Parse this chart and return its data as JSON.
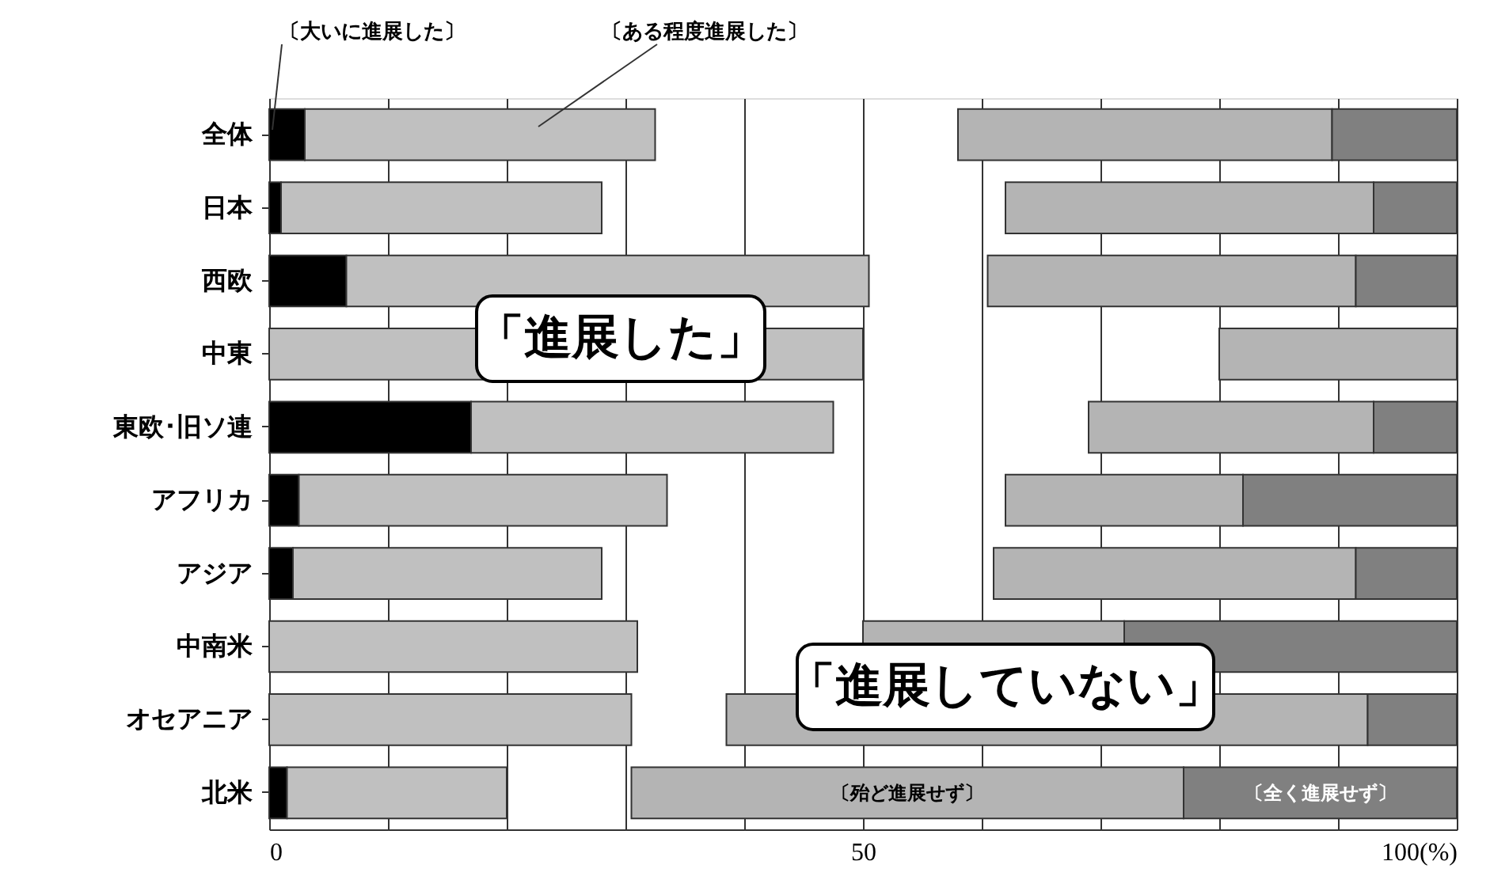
{
  "chart_data": {
    "type": "bar",
    "orientation": "horizontal",
    "categories": [
      "全体",
      "日本",
      "西欧",
      "中東",
      "東欧･旧ソ連",
      "アフリカ",
      "アジア",
      "中南米",
      "オセアニア",
      "北米"
    ],
    "series": [
      {
        "name": "〔大いに進展した〕",
        "color": "#000000",
        "base": [
          0,
          0,
          0,
          null,
          0,
          0,
          0,
          null,
          null,
          0
        ],
        "values": [
          3,
          1,
          6.5,
          null,
          17,
          2.5,
          2,
          null,
          null,
          1.5
        ]
      },
      {
        "name": "〔ある程度進展した〕",
        "color": "#c0c0c0",
        "base": [
          3,
          1,
          6.5,
          0,
          17,
          2.5,
          2,
          0,
          0,
          1.5
        ],
        "values": [
          29.5,
          27,
          44,
          50,
          30.5,
          31,
          26,
          31,
          30.5,
          18.5
        ]
      },
      {
        "name": "〔殆ど進展せず〕",
        "color": "#b4b4b4",
        "base": [
          58,
          62,
          60.5,
          80,
          69,
          62,
          61,
          50,
          38.5,
          30.5
        ],
        "values": [
          31.5,
          31,
          31,
          20,
          24,
          20,
          30.5,
          22,
          54,
          46.5
        ]
      },
      {
        "name": "〔全く進展せず〕",
        "color": "#808080",
        "base": [
          89.5,
          93,
          91.5,
          null,
          93,
          82,
          91.5,
          72,
          92.5,
          77
        ],
        "values": [
          10.5,
          7,
          8.5,
          null,
          7,
          18,
          8.5,
          28,
          7.5,
          23
        ]
      }
    ],
    "xlim": [
      0,
      100
    ],
    "xticks": [
      0,
      {
        "value": 10,
        "label": null
      },
      {
        "value": 20,
        "label": null
      },
      {
        "value": 30,
        "label": null
      },
      {
        "value": 40,
        "label": null
      },
      50,
      {
        "value": 60,
        "label": null
      },
      {
        "value": 70,
        "label": null
      },
      {
        "value": 80,
        "label": null
      },
      {
        "value": 90,
        "label": null
      },
      {
        "value": 100,
        "label": "100(%)"
      }
    ],
    "grid": "x",
    "annotations": [
      "「進展した」",
      "「進展していない」"
    ]
  }
}
